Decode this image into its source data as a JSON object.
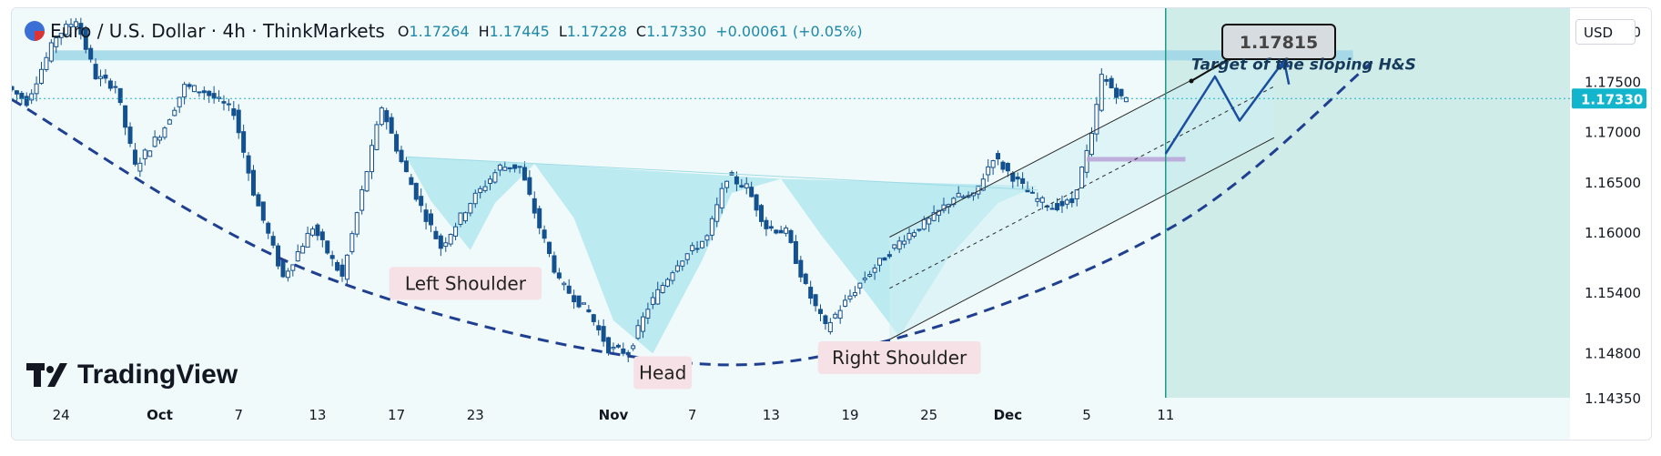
{
  "header": {
    "symbol": "Euro / U.S. Dollar · 4h · ThinkMarkets",
    "open_label": "O",
    "open": "1.17264",
    "high_label": "H",
    "high": "1.17445",
    "low_label": "L",
    "low": "1.17228",
    "close_label": "C",
    "close": "1.17330",
    "change": "+0.00061 (+0.05%)"
  },
  "currency_button": "USD",
  "logo": {
    "text": "TradingView",
    "icon": "tradingview-logo-icon"
  },
  "colors": {
    "background": "#f1fafb",
    "candle": "#14518f",
    "pattern_fill": "#b5e8ef",
    "curve": "#1f3f91",
    "channel": "#2a2a2a",
    "projection": "#1a4fa0",
    "label_bg": "#f6e1e7",
    "last_price": "#12b5cb",
    "future_zone": "#cfece8"
  },
  "chart_data": {
    "type": "candlestick",
    "timeframe": "4h",
    "x_ticks": [
      "24",
      "Oct",
      "7",
      "13",
      "17",
      "23",
      "Nov",
      "7",
      "13",
      "19",
      "25",
      "Dec",
      "5",
      "11"
    ],
    "y_ticks": [
      1.18,
      1.175,
      1.17,
      1.165,
      1.16,
      1.154,
      1.148,
      1.1435
    ],
    "y_tick_labels": [
      "1.18000",
      "1.17500",
      "1.17000",
      "1.16500",
      "1.16000",
      "1.15400",
      "1.14800",
      "1.14350"
    ],
    "ylim": [
      1.1435,
      1.1823
    ],
    "last_price": {
      "value": 1.1733,
      "label": "1.17330"
    },
    "target_callout": {
      "value": 1.17815,
      "label": "1.17815"
    },
    "price_path": [
      {
        "t": 0,
        "p": 1.1745
      },
      {
        "t": 2,
        "p": 1.173
      },
      {
        "t": 5,
        "p": 1.1795
      },
      {
        "t": 7,
        "p": 1.1812
      },
      {
        "t": 9,
        "p": 1.1755
      },
      {
        "t": 11,
        "p": 1.1745
      },
      {
        "t": 13,
        "p": 1.1665
      },
      {
        "t": 16,
        "p": 1.1705
      },
      {
        "t": 18,
        "p": 1.1745
      },
      {
        "t": 20,
        "p": 1.174
      },
      {
        "t": 23,
        "p": 1.172
      },
      {
        "t": 25,
        "p": 1.164
      },
      {
        "t": 28,
        "p": 1.1555
      },
      {
        "t": 31,
        "p": 1.1605
      },
      {
        "t": 34,
        "p": 1.1555
      },
      {
        "t": 36,
        "p": 1.164
      },
      {
        "t": 38,
        "p": 1.1725
      },
      {
        "t": 40,
        "p": 1.167
      },
      {
        "t": 42,
        "p": 1.1625
      },
      {
        "t": 44,
        "p": 1.1585
      },
      {
        "t": 47,
        "p": 1.163
      },
      {
        "t": 50,
        "p": 1.1665
      },
      {
        "t": 52,
        "p": 1.1665
      },
      {
        "t": 54,
        "p": 1.1605
      },
      {
        "t": 56,
        "p": 1.155
      },
      {
        "t": 59,
        "p": 1.152
      },
      {
        "t": 61,
        "p": 1.1484
      },
      {
        "t": 63,
        "p": 1.148
      },
      {
        "t": 65,
        "p": 1.1525
      },
      {
        "t": 68,
        "p": 1.157
      },
      {
        "t": 71,
        "p": 1.1595
      },
      {
        "t": 73,
        "p": 1.1655
      },
      {
        "t": 75,
        "p": 1.1645
      },
      {
        "t": 77,
        "p": 1.1605
      },
      {
        "t": 79,
        "p": 1.16
      },
      {
        "t": 81,
        "p": 1.1545
      },
      {
        "t": 83,
        "p": 1.1505
      },
      {
        "t": 85,
        "p": 1.153
      },
      {
        "t": 87,
        "p": 1.1555
      },
      {
        "t": 89,
        "p": 1.1575
      },
      {
        "t": 91,
        "p": 1.1595
      },
      {
        "t": 94,
        "p": 1.1615
      },
      {
        "t": 96,
        "p": 1.1635
      },
      {
        "t": 98,
        "p": 1.1635
      },
      {
        "t": 100,
        "p": 1.1675
      },
      {
        "t": 102,
        "p": 1.1655
      },
      {
        "t": 104,
        "p": 1.1635
      },
      {
        "t": 106,
        "p": 1.1625
      },
      {
        "t": 108,
        "p": 1.163
      },
      {
        "t": 110,
        "p": 1.1695
      },
      {
        "t": 111,
        "p": 1.1755
      },
      {
        "t": 113,
        "p": 1.1733
      }
    ],
    "x_tick_positions": [
      5,
      15,
      23,
      31,
      39,
      47,
      61,
      69,
      77,
      85,
      93,
      101,
      109,
      117
    ],
    "annotations": [
      {
        "kind": "label",
        "text": "Left Shoulder",
        "t": 46,
        "p": 1.1548
      },
      {
        "kind": "label",
        "text": "Head",
        "t": 66,
        "p": 1.1459
      },
      {
        "kind": "label",
        "text": "Right Shoulder",
        "t": 90,
        "p": 1.1474
      },
      {
        "kind": "text",
        "text": "Target of the sloping H&S",
        "t": 131,
        "p": 1.1762
      }
    ],
    "head_and_shoulders": {
      "left_shoulder": [
        [
          40,
          1.1675
        ],
        [
          42.5,
          1.1631
        ],
        [
          46.5,
          1.1582
        ],
        [
          49,
          1.1629
        ],
        [
          53,
          1.1668
        ]
      ],
      "head": [
        [
          53,
          1.1668
        ],
        [
          57,
          1.1614
        ],
        [
          61,
          1.1512
        ],
        [
          65,
          1.1479
        ],
        [
          70,
          1.1572
        ],
        [
          73,
          1.1639
        ],
        [
          78,
          1.1653
        ]
      ],
      "right_shoulder": [
        [
          78,
          1.1653
        ],
        [
          82,
          1.1598
        ],
        [
          86,
          1.1548
        ],
        [
          90,
          1.1496
        ],
        [
          95,
          1.1575
        ],
        [
          100,
          1.1629
        ],
        [
          104,
          1.1646
        ]
      ]
    },
    "neckline": [
      [
        40,
        1.1675
      ],
      [
        104,
        1.1642
      ]
    ],
    "resistance_zone": [
      1.1771,
      1.1781
    ],
    "purple_zone": [
      1.1669,
      1.1673
    ],
    "rounded_bottom_curve": [
      [
        0,
        1.1732
      ],
      [
        30,
        1.1562
      ],
      [
        66,
        1.1472
      ],
      [
        90,
        1.1495
      ],
      [
        118,
        1.1607
      ],
      [
        138,
        1.177
      ]
    ],
    "channel_upper": [
      [
        89,
        1.1595
      ],
      [
        128,
        1.1794
      ]
    ],
    "channel_lower": [
      [
        89,
        1.1493
      ],
      [
        128,
        1.1694
      ]
    ],
    "channel_mid": [
      [
        89,
        1.1544
      ],
      [
        128,
        1.1745
      ]
    ],
    "projection_path": [
      [
        117,
        1.1678
      ],
      [
        122,
        1.1755
      ],
      [
        124.5,
        1.1711
      ],
      [
        129,
        1.1771
      ],
      [
        129.5,
        1.1747
      ]
    ],
    "future_zone_start": 117,
    "price_line_t": 117
  }
}
